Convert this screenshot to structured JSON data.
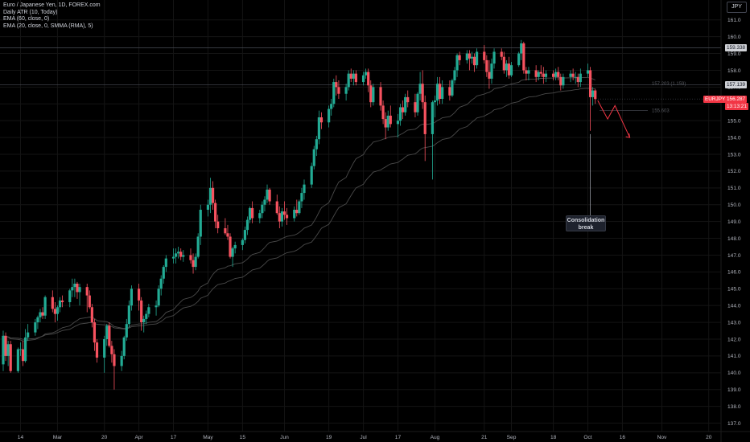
{
  "header": {
    "symbol": "Euro / Japanese Yen, 1D, FOREX.com",
    "indicators": [
      "Daily ATR (10, Today)",
      "EMA (60, close, 0)",
      "EMA (20, close, 0, SMMA (RMA), 5)"
    ],
    "currency": "JPY"
  },
  "price_tags": [
    {
      "label": "159.338",
      "value": 159.338,
      "color": "#cfd1d6",
      "text_color": "#131722"
    },
    {
      "label": "157.139",
      "value": 157.139,
      "color": "#cfd1d6",
      "text_color": "#131722"
    },
    {
      "label": "EURJPY",
      "value": 156.29,
      "color": "#f23645",
      "text_color": "#ffffff"
    },
    {
      "label": "156.287",
      "value": 156.287,
      "color": "#f23645",
      "text_color": "#ffffff"
    },
    {
      "label": "13:13:21",
      "value": 155.85,
      "color": "#f23645",
      "text_color": "#ffffff"
    }
  ],
  "levels": [
    {
      "label": "157.203 (1.159)",
      "value": 157.203
    },
    {
      "label": "155.603",
      "value": 155.603
    }
  ],
  "annotation": {
    "line1": "Consolidation",
    "line2": "break"
  },
  "colors": {
    "up": "#22ab94",
    "down": "#f7525f",
    "grid": "#141414",
    "ema": "#4a4a4a",
    "axis_text": "#b2b5be"
  },
  "chart_data": {
    "type": "candlestick",
    "title": "Euro / Japanese Yen, 1D, FOREX.com",
    "ylim": [
      136.5,
      161.8
    ],
    "y_ticks": [
      137.0,
      138.0,
      139.0,
      140.0,
      141.0,
      142.0,
      143.0,
      144.0,
      145.0,
      146.0,
      147.0,
      148.0,
      149.0,
      150.0,
      151.0,
      152.0,
      153.0,
      154.0,
      155.0,
      156.0,
      157.0,
      158.0,
      159.0,
      160.0,
      161.0
    ],
    "x_ticks": [
      "14",
      "Mar",
      "20",
      "Apr",
      "17",
      "May",
      "15",
      "Jun",
      "19",
      "Jul",
      "17",
      "Aug",
      "21",
      "Sep",
      "18",
      "Oct",
      "16",
      "Nov",
      "20"
    ],
    "x_range": [
      "2023-02-07",
      "2023-11-24"
    ],
    "last_close": 156.287,
    "ohlc": [
      [
        "2023-02-07",
        140.5,
        142.5,
        140.1,
        142.2
      ],
      [
        "2023-02-08",
        142.2,
        142.4,
        140.7,
        141.0
      ],
      [
        "2023-02-09",
        141.0,
        141.9,
        140.4,
        141.7
      ],
      [
        "2023-02-10",
        141.7,
        141.9,
        140.0,
        140.1
      ],
      [
        "2023-02-13",
        140.1,
        141.5,
        140.0,
        141.4
      ],
      [
        "2023-02-14",
        141.4,
        141.8,
        141.0,
        141.4
      ],
      [
        "2023-02-15",
        141.4,
        141.9,
        140.4,
        140.7
      ],
      [
        "2023-02-16",
        140.7,
        142.6,
        140.6,
        142.1
      ],
      [
        "2023-02-17",
        142.1,
        142.9,
        141.9,
        142.4
      ],
      [
        "2023-02-20",
        142.4,
        143.2,
        142.2,
        143.0
      ],
      [
        "2023-02-21",
        143.0,
        143.4,
        142.6,
        143.3
      ],
      [
        "2023-02-22",
        143.3,
        143.8,
        143.0,
        143.6
      ],
      [
        "2023-02-23",
        143.6,
        143.9,
        143.2,
        143.4
      ],
      [
        "2023-02-24",
        143.4,
        144.6,
        143.2,
        144.5
      ],
      [
        "2023-02-27",
        144.5,
        144.9,
        143.6,
        143.8
      ],
      [
        "2023-02-28",
        143.8,
        144.2,
        143.0,
        143.5
      ],
      [
        "2023-03-01",
        143.5,
        144.0,
        143.1,
        143.9
      ],
      [
        "2023-03-02",
        143.9,
        144.5,
        143.6,
        144.3
      ],
      [
        "2023-03-03",
        144.3,
        144.6,
        143.9,
        144.2
      ],
      [
        "2023-03-06",
        144.2,
        145.0,
        143.9,
        144.9
      ],
      [
        "2023-03-07",
        144.9,
        145.6,
        144.5,
        145.1
      ],
      [
        "2023-03-08",
        145.1,
        145.6,
        144.5,
        145.3
      ],
      [
        "2023-03-09",
        145.3,
        145.4,
        144.4,
        144.8
      ],
      [
        "2023-03-10",
        144.8,
        145.3,
        144.0,
        145.1
      ],
      [
        "2023-03-13",
        145.1,
        145.3,
        143.6,
        144.6
      ],
      [
        "2023-03-14",
        144.6,
        144.9,
        143.8,
        143.9
      ],
      [
        "2023-03-15",
        143.9,
        144.1,
        142.7,
        143.0
      ],
      [
        "2023-03-16",
        143.0,
        143.2,
        141.3,
        141.8
      ],
      [
        "2023-03-17",
        141.8,
        142.0,
        140.6,
        140.9
      ],
      [
        "2023-03-20",
        140.9,
        142.2,
        140.0,
        142.0
      ],
      [
        "2023-03-21",
        142.0,
        142.9,
        141.6,
        142.8
      ],
      [
        "2023-03-22",
        142.8,
        143.0,
        141.5,
        141.6
      ],
      [
        "2023-03-23",
        141.6,
        141.9,
        140.6,
        141.1
      ],
      [
        "2023-03-24",
        141.1,
        141.4,
        139.0,
        140.4
      ],
      [
        "2023-03-27",
        140.4,
        141.3,
        140.1,
        141.0
      ],
      [
        "2023-03-28",
        141.0,
        142.2,
        140.8,
        142.1
      ],
      [
        "2023-03-29",
        142.1,
        143.2,
        141.9,
        142.9
      ],
      [
        "2023-03-30",
        142.9,
        144.3,
        142.7,
        144.0
      ],
      [
        "2023-03-31",
        144.0,
        145.2,
        143.7,
        145.0
      ],
      [
        "2023-04-03",
        145.0,
        145.3,
        143.7,
        144.3
      ],
      [
        "2023-04-04",
        144.3,
        144.5,
        142.5,
        143.0
      ],
      [
        "2023-04-05",
        143.0,
        143.4,
        142.4,
        143.2
      ],
      [
        "2023-04-06",
        143.2,
        143.7,
        142.9,
        143.5
      ],
      [
        "2023-04-07",
        143.5,
        144.1,
        143.3,
        143.9
      ],
      [
        "2023-04-10",
        143.9,
        144.3,
        143.4,
        144.0
      ],
      [
        "2023-04-11",
        144.0,
        145.2,
        143.9,
        145.0
      ],
      [
        "2023-04-12",
        145.0,
        145.8,
        144.6,
        145.6
      ],
      [
        "2023-04-13",
        145.6,
        146.4,
        145.3,
        146.3
      ],
      [
        "2023-04-14",
        146.3,
        147.0,
        146.0,
        146.8
      ],
      [
        "2023-04-17",
        146.8,
        147.4,
        146.5,
        146.9
      ],
      [
        "2023-04-18",
        146.9,
        147.4,
        146.5,
        147.1
      ],
      [
        "2023-04-19",
        147.1,
        147.5,
        146.8,
        147.2
      ],
      [
        "2023-04-20",
        147.2,
        147.4,
        146.7,
        146.9
      ],
      [
        "2023-04-21",
        146.9,
        147.3,
        146.6,
        147.0
      ],
      [
        "2023-04-24",
        147.0,
        147.4,
        146.5,
        146.7
      ],
      [
        "2023-04-25",
        146.7,
        147.1,
        145.9,
        146.3
      ],
      [
        "2023-04-26",
        146.3,
        147.1,
        146.1,
        146.9
      ],
      [
        "2023-04-27",
        146.9,
        148.3,
        146.8,
        148.1
      ],
      [
        "2023-04-28",
        148.1,
        150.0,
        147.6,
        149.7
      ],
      [
        "2023-05-01",
        149.7,
        150.3,
        149.3,
        150.0
      ],
      [
        "2023-05-02",
        150.0,
        151.6,
        149.5,
        151.0
      ],
      [
        "2023-05-03",
        151.0,
        151.4,
        149.7,
        150.1
      ],
      [
        "2023-05-04",
        150.1,
        150.3,
        148.6,
        149.0
      ],
      [
        "2023-05-05",
        149.0,
        149.4,
        148.3,
        148.6
      ],
      [
        "2023-05-08",
        148.6,
        149.2,
        148.2,
        148.3
      ],
      [
        "2023-05-09",
        148.3,
        148.8,
        147.9,
        148.1
      ],
      [
        "2023-05-10",
        148.1,
        148.3,
        146.8,
        146.9
      ],
      [
        "2023-05-11",
        146.9,
        147.5,
        146.3,
        147.4
      ],
      [
        "2023-05-12",
        147.4,
        147.8,
        147.1,
        147.6
      ],
      [
        "2023-05-15",
        147.6,
        148.0,
        147.3,
        147.9
      ],
      [
        "2023-05-16",
        147.9,
        148.7,
        147.7,
        148.5
      ],
      [
        "2023-05-17",
        148.5,
        149.3,
        148.2,
        149.1
      ],
      [
        "2023-05-18",
        149.1,
        149.9,
        148.9,
        149.8
      ],
      [
        "2023-05-19",
        149.8,
        150.2,
        148.9,
        149.2
      ],
      [
        "2023-05-22",
        149.2,
        149.7,
        148.9,
        149.5
      ],
      [
        "2023-05-23",
        149.5,
        150.2,
        149.2,
        150.0
      ],
      [
        "2023-05-24",
        150.0,
        150.5,
        149.6,
        150.3
      ],
      [
        "2023-05-25",
        150.3,
        151.2,
        150.1,
        150.9
      ],
      [
        "2023-05-26",
        150.9,
        151.0,
        150.0,
        150.2
      ],
      [
        "2023-05-29",
        150.2,
        150.6,
        149.4,
        149.5
      ],
      [
        "2023-05-30",
        149.5,
        149.9,
        148.6,
        149.0
      ],
      [
        "2023-05-31",
        149.0,
        149.8,
        148.7,
        149.6
      ],
      [
        "2023-06-01",
        149.6,
        150.2,
        149.1,
        149.4
      ],
      [
        "2023-06-02",
        149.4,
        149.8,
        148.8,
        149.2
      ],
      [
        "2023-06-05",
        149.2,
        149.9,
        149.0,
        149.7
      ],
      [
        "2023-06-06",
        149.7,
        150.3,
        149.3,
        149.5
      ],
      [
        "2023-06-07",
        149.5,
        150.3,
        149.4,
        150.2
      ],
      [
        "2023-06-08",
        150.2,
        151.0,
        149.8,
        150.7
      ],
      [
        "2023-06-09",
        150.7,
        151.5,
        150.3,
        151.2
      ],
      [
        "2023-06-12",
        151.2,
        152.5,
        151.0,
        152.3
      ],
      [
        "2023-06-13",
        152.3,
        153.5,
        152.1,
        153.3
      ],
      [
        "2023-06-14",
        153.3,
        154.1,
        152.9,
        153.9
      ],
      [
        "2023-06-15",
        153.9,
        155.6,
        153.6,
        155.2
      ],
      [
        "2023-06-16",
        155.2,
        155.5,
        154.5,
        154.9
      ],
      [
        "2023-06-19",
        154.9,
        155.9,
        154.6,
        155.7
      ],
      [
        "2023-06-20",
        155.7,
        156.3,
        155.3,
        156.0
      ],
      [
        "2023-06-21",
        156.0,
        157.5,
        155.8,
        157.3
      ],
      [
        "2023-06-22",
        157.3,
        157.7,
        156.5,
        157.0
      ],
      [
        "2023-06-23",
        157.0,
        157.4,
        156.3,
        156.6
      ],
      [
        "2023-06-26",
        156.6,
        157.2,
        156.2,
        157.0
      ],
      [
        "2023-06-27",
        157.0,
        158.0,
        156.8,
        157.8
      ],
      [
        "2023-06-28",
        157.8,
        158.1,
        157.3,
        157.5
      ],
      [
        "2023-06-29",
        157.5,
        158.0,
        157.1,
        157.8
      ],
      [
        "2023-06-30",
        157.8,
        158.0,
        157.1,
        157.3
      ],
      [
        "2023-07-03",
        157.3,
        157.9,
        157.1,
        157.7
      ],
      [
        "2023-07-04",
        157.7,
        158.1,
        157.5,
        157.9
      ],
      [
        "2023-07-05",
        157.9,
        158.1,
        156.7,
        157.1
      ],
      [
        "2023-07-06",
        157.1,
        157.4,
        155.8,
        156.1
      ],
      [
        "2023-07-07",
        156.1,
        157.2,
        155.9,
        157.0
      ],
      [
        "2023-07-10",
        157.0,
        157.3,
        155.6,
        155.9
      ],
      [
        "2023-07-11",
        155.9,
        156.2,
        154.8,
        155.1
      ],
      [
        "2023-07-12",
        155.1,
        155.5,
        153.9,
        154.6
      ],
      [
        "2023-07-13",
        154.6,
        155.6,
        154.4,
        155.3
      ],
      [
        "2023-07-14",
        155.3,
        155.9,
        154.6,
        154.8
      ],
      [
        "2023-07-17",
        154.8,
        155.4,
        154.0,
        155.0
      ],
      [
        "2023-07-18",
        155.0,
        156.0,
        154.7,
        155.8
      ],
      [
        "2023-07-19",
        155.8,
        156.2,
        155.1,
        155.5
      ],
      [
        "2023-07-20",
        155.5,
        156.6,
        155.3,
        156.4
      ],
      [
        "2023-07-21",
        156.4,
        156.8,
        155.8,
        156.1
      ],
      [
        "2023-07-24",
        156.1,
        156.6,
        155.2,
        155.5
      ],
      [
        "2023-07-25",
        155.5,
        156.7,
        155.3,
        156.6
      ],
      [
        "2023-07-26",
        156.6,
        157.9,
        156.2,
        157.2
      ],
      [
        "2023-07-27",
        157.2,
        158.0,
        155.7,
        156.1
      ],
      [
        "2023-07-28",
        156.1,
        156.5,
        152.6,
        154.2
      ],
      [
        "2023-07-31",
        154.2,
        156.2,
        151.5,
        156.1
      ],
      [
        "2023-08-01",
        156.1,
        156.5,
        155.2,
        156.2
      ],
      [
        "2023-08-02",
        156.2,
        157.6,
        155.9,
        157.2
      ],
      [
        "2023-08-03",
        157.2,
        157.6,
        156.0,
        156.3
      ],
      [
        "2023-08-04",
        156.3,
        157.4,
        156.0,
        157.0
      ],
      [
        "2023-08-07",
        157.0,
        157.4,
        156.2,
        156.5
      ],
      [
        "2023-08-08",
        156.5,
        157.5,
        156.4,
        157.4
      ],
      [
        "2023-08-09",
        157.4,
        158.2,
        157.2,
        158.0
      ],
      [
        "2023-08-10",
        158.0,
        159.0,
        157.6,
        158.9
      ],
      [
        "2023-08-11",
        158.9,
        159.1,
        158.3,
        158.6
      ],
      [
        "2023-08-14",
        158.6,
        159.2,
        158.4,
        159.0
      ],
      [
        "2023-08-15",
        159.0,
        159.2,
        158.0,
        158.7
      ],
      [
        "2023-08-16",
        158.7,
        159.1,
        158.4,
        158.8
      ],
      [
        "2023-08-17",
        158.8,
        159.0,
        157.9,
        158.3
      ],
      [
        "2023-08-18",
        158.3,
        159.3,
        158.1,
        159.1
      ],
      [
        "2023-08-21",
        159.1,
        159.5,
        158.4,
        158.6
      ],
      [
        "2023-08-22",
        158.6,
        158.9,
        157.6,
        157.9
      ],
      [
        "2023-08-23",
        157.9,
        158.6,
        156.9,
        157.5
      ],
      [
        "2023-08-24",
        157.5,
        158.7,
        157.2,
        158.4
      ],
      [
        "2023-08-25",
        158.4,
        159.3,
        158.1,
        159.1
      ],
      [
        "2023-08-28",
        159.1,
        159.3,
        158.6,
        158.8
      ],
      [
        "2023-08-29",
        158.8,
        159.1,
        157.8,
        158.0
      ],
      [
        "2023-08-30",
        158.0,
        158.6,
        157.6,
        158.4
      ],
      [
        "2023-08-31",
        158.4,
        158.8,
        157.5,
        157.7
      ],
      [
        "2023-09-01",
        157.7,
        158.5,
        157.6,
        158.3
      ],
      [
        "2023-09-04",
        158.3,
        159.1,
        158.2,
        159.0
      ],
      [
        "2023-09-05",
        159.0,
        159.8,
        158.6,
        159.6
      ],
      [
        "2023-09-06",
        159.6,
        159.7,
        157.8,
        158.0
      ],
      [
        "2023-09-07",
        158.0,
        158.2,
        157.4,
        157.8
      ],
      [
        "2023-09-08",
        157.8,
        158.2,
        157.4,
        158.0
      ],
      [
        "2023-09-11",
        158.0,
        158.3,
        157.3,
        157.6
      ],
      [
        "2023-09-12",
        157.6,
        158.0,
        157.4,
        157.9
      ],
      [
        "2023-09-13",
        157.9,
        158.3,
        157.6,
        157.8
      ],
      [
        "2023-09-14",
        157.8,
        158.2,
        157.2,
        157.6
      ],
      [
        "2023-09-15",
        157.6,
        158.0,
        157.3,
        157.8
      ],
      [
        "2023-09-18",
        157.8,
        158.0,
        157.4,
        157.6
      ],
      [
        "2023-09-19",
        157.6,
        158.1,
        157.4,
        157.9
      ],
      [
        "2023-09-20",
        157.9,
        158.2,
        157.4,
        157.6
      ],
      [
        "2023-09-21",
        157.6,
        157.8,
        156.8,
        157.1
      ],
      [
        "2023-09-22",
        157.1,
        157.8,
        156.9,
        157.6
      ],
      [
        "2023-09-25",
        157.6,
        158.0,
        157.3,
        157.8
      ],
      [
        "2023-09-26",
        157.8,
        158.1,
        157.4,
        157.6
      ],
      [
        "2023-09-27",
        157.6,
        157.9,
        157.2,
        157.6
      ],
      [
        "2023-09-28",
        157.6,
        157.8,
        157.0,
        157.3
      ],
      [
        "2023-09-29",
        157.3,
        158.1,
        157.0,
        157.8
      ],
      [
        "2023-10-02",
        157.8,
        158.4,
        157.6,
        158.0
      ],
      [
        "2023-10-03",
        158.0,
        158.2,
        154.4,
        156.4
      ],
      [
        "2023-10-04",
        156.4,
        157.0,
        155.9,
        156.8
      ],
      [
        "2023-10-05",
        156.8,
        156.9,
        156.0,
        156.29
      ]
    ]
  }
}
